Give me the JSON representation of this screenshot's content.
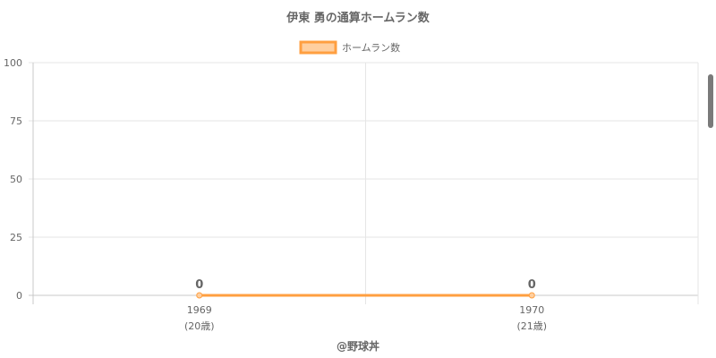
{
  "chart_data": {
    "type": "line",
    "title": "伊東 勇の通算ホームラン数",
    "categories": [
      "1969",
      "1970"
    ],
    "category_sublabels": [
      "(20歳)",
      "(21歳)"
    ],
    "series": [
      {
        "name": "ホームラン数",
        "values": [
          0,
          0
        ],
        "color": "#ff9f40",
        "fill": "#ffcf9f"
      }
    ],
    "data_labels": [
      "0",
      "0"
    ],
    "ylim": [
      0,
      100
    ],
    "yticks": [
      "0",
      "25",
      "50",
      "75",
      "100"
    ],
    "grid": true,
    "legend": "top"
  },
  "watermark": "@野球丼"
}
